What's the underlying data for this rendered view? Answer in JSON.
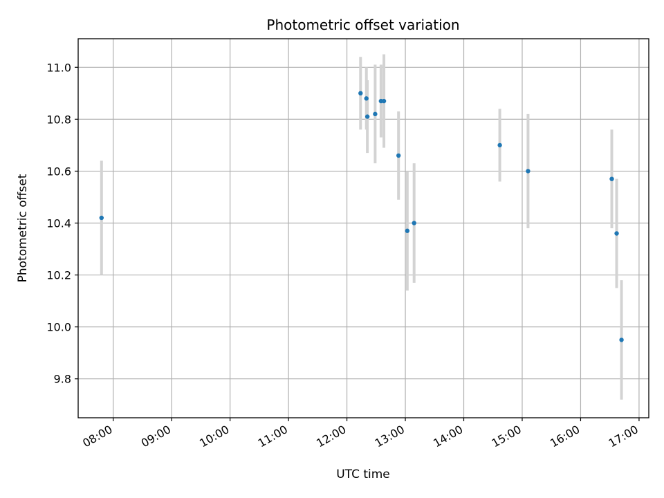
{
  "chart_data": {
    "type": "scatter",
    "title": "Photometric offset variation",
    "xlabel": "UTC time",
    "ylabel": "Photometric offset",
    "x_ticks": [
      "08:00",
      "09:00",
      "10:00",
      "11:00",
      "12:00",
      "13:00",
      "14:00",
      "15:00",
      "16:00",
      "17:00"
    ],
    "y_ticks": [
      "9.8",
      "10.0",
      "10.2",
      "10.4",
      "10.6",
      "10.8",
      "11.0"
    ],
    "xlim": [
      "07:24",
      "17:10"
    ],
    "ylim": [
      9.65,
      11.11
    ],
    "grid": true,
    "colors": {
      "point": "#1f77b4",
      "errorbar": "#d3d3d3",
      "grid": "#b0b0b0"
    },
    "points": [
      {
        "x": "07:48",
        "y": 10.42,
        "err": 0.22
      },
      {
        "x": "12:14",
        "y": 10.9,
        "err": 0.14
      },
      {
        "x": "12:20",
        "y": 10.88,
        "err": 0.12
      },
      {
        "x": "12:21",
        "y": 10.81,
        "err": 0.14
      },
      {
        "x": "12:29",
        "y": 10.82,
        "err": 0.19
      },
      {
        "x": "12:35",
        "y": 10.87,
        "err": 0.14
      },
      {
        "x": "12:38",
        "y": 10.87,
        "err": 0.18
      },
      {
        "x": "12:53",
        "y": 10.66,
        "err": 0.17
      },
      {
        "x": "13:02",
        "y": 10.37,
        "err": 0.23
      },
      {
        "x": "13:09",
        "y": 10.4,
        "err": 0.23
      },
      {
        "x": "14:37",
        "y": 10.7,
        "err": 0.14
      },
      {
        "x": "15:06",
        "y": 10.6,
        "err": 0.22
      },
      {
        "x": "16:32",
        "y": 10.57,
        "err": 0.19
      },
      {
        "x": "16:37",
        "y": 10.36,
        "err": 0.21
      },
      {
        "x": "16:42",
        "y": 9.95,
        "err": 0.23
      }
    ]
  }
}
